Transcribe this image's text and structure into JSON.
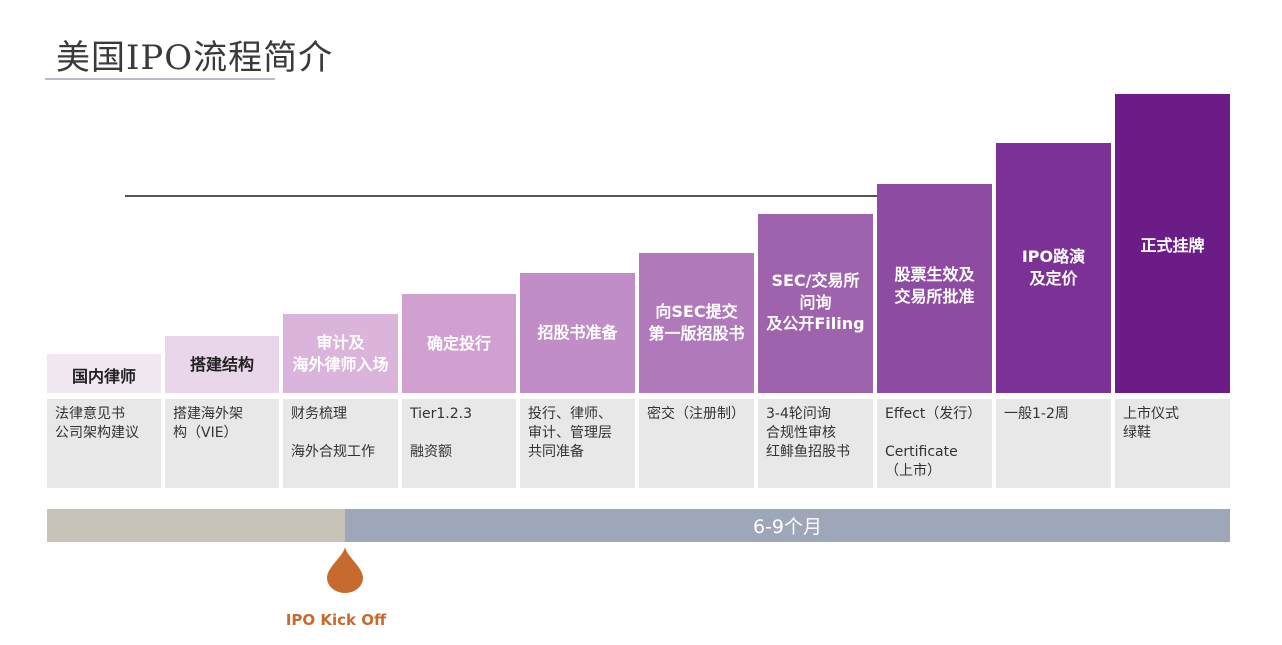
{
  "title": "美国IPO流程简介",
  "steps": [
    {
      "label": "国内律师",
      "details": [
        "法律意见书\n公司架构建议"
      ]
    },
    {
      "label": "搭建结构",
      "details": [
        "搭建海外架\n构（VIE）"
      ]
    },
    {
      "label": "审计及\n海外律师入场",
      "details": [
        "财务梳理",
        "海外合规工作"
      ]
    },
    {
      "label": "确定投行",
      "details": [
        "Tier1.2.3",
        "融资额"
      ]
    },
    {
      "label": "招股书准备",
      "details": [
        "投行、律师、\n审计、管理层\n共同准备"
      ]
    },
    {
      "label": "向SEC提交\n第一版招股书",
      "details": [
        "密交（注册制）"
      ]
    },
    {
      "label": "SEC/交易所\n问询\n及公开Filing",
      "details": [
        "3-4轮问询\n合规性审核\n红鲱鱼招股书"
      ]
    },
    {
      "label": "股票生效及\n交易所批准",
      "details": [
        "Effect（发行）",
        "Certificate\n（上市）"
      ]
    },
    {
      "label": "IPO路演\n及定价",
      "details": [
        "一般1-2周"
      ]
    },
    {
      "label": "正式挂牌",
      "details": [
        "上市仪式\n绿鞋"
      ]
    }
  ],
  "timeline": {
    "duration_label": "6-9个月",
    "kickoff_label": "IPO Kick Off"
  },
  "colors": {
    "kickoff": "#c66a2e",
    "duration_bar": "#9ea7b9",
    "kick_bar": "#c8c3b8"
  }
}
